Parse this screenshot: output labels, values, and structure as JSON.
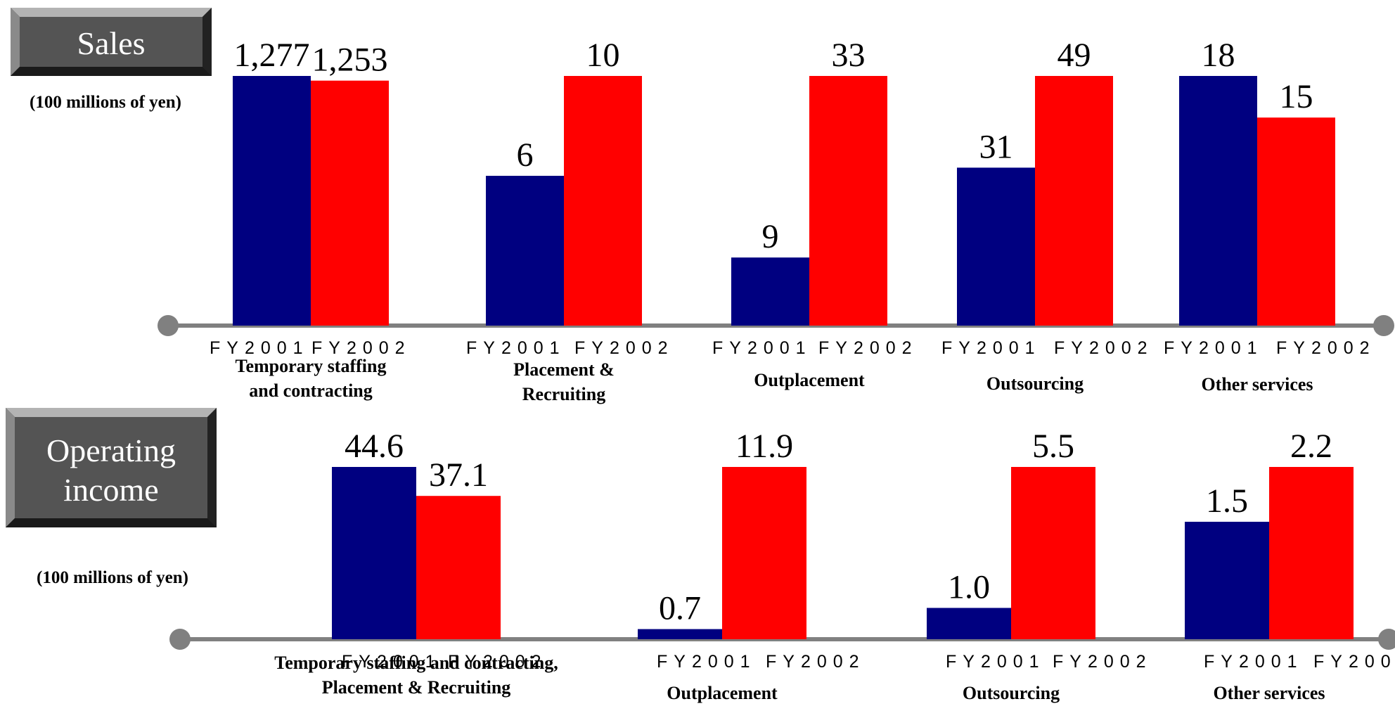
{
  "colors": {
    "fy2001": "#000080",
    "fy2002": "#ff0000",
    "axis": "#808080"
  },
  "chart_data": [
    {
      "type": "bar",
      "title": "Sales",
      "unit_label": "(100 millions of yen)",
      "tick_labels": [
        "FY2001",
        "FY2002"
      ],
      "categories": [
        "Temporary staffing and contracting",
        "Placement & Recruiting",
        "Outplacement",
        "Outsourcing",
        "Other services"
      ],
      "category_lines": [
        [
          "Temporary staffing",
          "and contracting"
        ],
        [
          "Placement &",
          "Recruiting"
        ],
        [
          "Outplacement"
        ],
        [
          "Outsourcing"
        ],
        [
          "Other services"
        ]
      ],
      "series": [
        {
          "values": [
            1277,
            6,
            9,
            31,
            18
          ],
          "labels": [
            "1,277",
            "6",
            "9",
            "31",
            "18"
          ]
        },
        {
          "values": [
            1253,
            10,
            33,
            49,
            15
          ],
          "labels": [
            "1,253",
            "10",
            "33",
            "49",
            "15"
          ]
        }
      ],
      "axis_scale": "independent per category",
      "grid": false,
      "legend": "none"
    },
    {
      "type": "bar",
      "title": "Operating income",
      "title_lines": [
        "Operating",
        "income"
      ],
      "unit_label": "(100 millions of yen)",
      "tick_labels": [
        "FY2001",
        "FY2002"
      ],
      "categories": [
        "Temporary staffing and contracting, Placement & Recruiting",
        "Outplacement",
        "Outsourcing",
        "Other services"
      ],
      "category_lines": [
        [
          "Temporary staffing and contracting,",
          "Placement & Recruiting"
        ],
        [
          "Outplacement"
        ],
        [
          "Outsourcing"
        ],
        [
          "Other services"
        ]
      ],
      "series": [
        {
          "values": [
            44.6,
            0.7,
            1.0,
            1.5
          ],
          "labels": [
            "44.6",
            "0.7",
            "1.0",
            "1.5"
          ]
        },
        {
          "values": [
            37.1,
            11.9,
            5.5,
            2.2
          ],
          "labels": [
            "37.1",
            "11.9",
            "5.5",
            "2.2"
          ]
        }
      ],
      "axis_scale": "independent per category",
      "grid": false,
      "legend": "none"
    }
  ]
}
